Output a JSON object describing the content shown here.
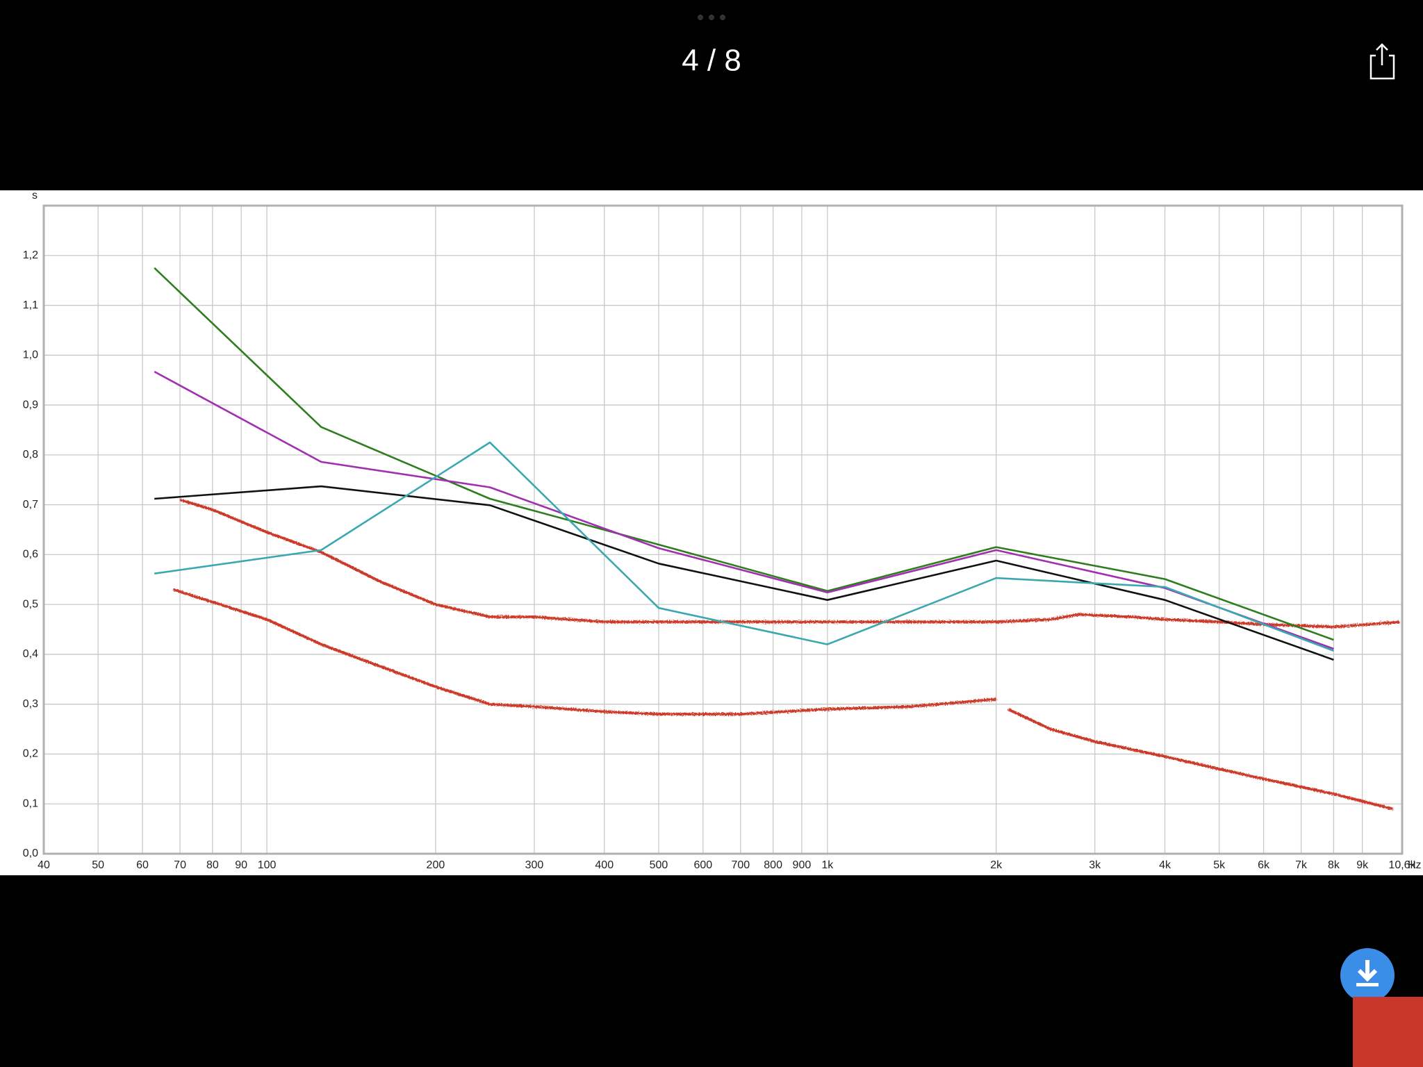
{
  "header": {
    "counter": "4 / 8"
  },
  "chart_data": {
    "type": "line",
    "y_unit": "s",
    "x_unit": "Hz",
    "log_x": true,
    "grid": true,
    "xlim": [
      40,
      10600
    ],
    "ylim": [
      0,
      1.3
    ],
    "xticks": [
      40,
      50,
      60,
      70,
      80,
      90,
      100,
      200,
      300,
      400,
      500,
      600,
      700,
      800,
      900,
      {
        "value": 1000,
        "label": "1k"
      },
      {
        "value": 2000,
        "label": "2k"
      },
      {
        "value": 3000,
        "label": "3k"
      },
      {
        "value": 4000,
        "label": "4k"
      },
      {
        "value": 5000,
        "label": "5k"
      },
      {
        "value": 6000,
        "label": "6k"
      },
      {
        "value": 7000,
        "label": "7k"
      },
      {
        "value": 8000,
        "label": "8k"
      },
      {
        "value": 9000,
        "label": "9k"
      },
      {
        "value": 10600,
        "label": "10,6k"
      }
    ],
    "yticks": [
      {
        "value": 0,
        "label": "0,0"
      },
      {
        "value": 0.1,
        "label": "0,1"
      },
      {
        "value": 0.2,
        "label": "0,2"
      },
      {
        "value": 0.3,
        "label": "0,3"
      },
      {
        "value": 0.4,
        "label": "0,4"
      },
      {
        "value": 0.5,
        "label": "0,5"
      },
      {
        "value": 0.6,
        "label": "0,6"
      },
      {
        "value": 0.7,
        "label": "0,7"
      },
      {
        "value": 0.8,
        "label": "0,8"
      },
      {
        "value": 0.9,
        "label": "0,9"
      },
      {
        "value": 1.0,
        "label": "1,0"
      },
      {
        "value": 1.1,
        "label": "1,1"
      },
      {
        "value": 1.2,
        "label": "1,2"
      }
    ],
    "series": [
      {
        "color": "#cc3a2a",
        "noisy": true,
        "x": [
          70,
          80,
          100,
          125,
          160,
          200,
          250,
          300,
          400,
          500,
          700,
          1000,
          1400,
          2000,
          2500,
          2800,
          3500,
          4000,
          5000,
          6000,
          8000,
          10500
        ],
        "values": [
          0.71,
          0.69,
          0.645,
          0.605,
          0.545,
          0.5,
          0.475,
          0.475,
          0.465,
          0.465,
          0.465,
          0.465,
          0.465,
          0.465,
          0.47,
          0.48,
          0.475,
          0.47,
          0.465,
          0.46,
          0.455,
          0.465
        ]
      },
      {
        "color": "#cc3a2a",
        "noisy": true,
        "x": [
          68,
          80,
          100,
          125,
          160,
          200,
          250,
          300,
          400,
          500,
          700,
          1000,
          1400,
          2000,
          2050,
          2100,
          2500,
          3000,
          4000,
          5000,
          6000,
          8000,
          10200
        ],
        "values": [
          0.53,
          0.505,
          0.47,
          0.42,
          0.375,
          0.335,
          0.3,
          0.295,
          0.285,
          0.28,
          0.28,
          0.29,
          0.295,
          0.31,
          null,
          0.29,
          0.25,
          0.225,
          0.195,
          0.17,
          0.15,
          0.12,
          0.09
        ]
      },
      {
        "color": "#2e7d1e",
        "x": [
          63,
          125,
          250,
          500,
          1000,
          2000,
          4000,
          8000
        ],
        "values": [
          1.175,
          0.856,
          0.712,
          0.62,
          0.527,
          0.615,
          0.551,
          0.429
        ]
      },
      {
        "color": "#a030b0",
        "x": [
          63,
          125,
          250,
          500,
          1000,
          2000,
          4000,
          8000
        ],
        "values": [
          0.967,
          0.786,
          0.735,
          0.613,
          0.524,
          0.609,
          0.533,
          0.411
        ]
      },
      {
        "color": "#111111",
        "x": [
          63,
          125,
          250,
          500,
          1000,
          2000,
          4000,
          8000
        ],
        "values": [
          0.712,
          0.737,
          0.699,
          0.582,
          0.509,
          0.588,
          0.509,
          0.389
        ]
      },
      {
        "color": "#3aa8b0",
        "x": [
          63,
          125,
          250,
          500,
          1000,
          2000,
          4000,
          8000
        ],
        "values": [
          0.562,
          0.609,
          0.825,
          0.493,
          0.42,
          0.553,
          0.535,
          0.407
        ]
      }
    ]
  }
}
